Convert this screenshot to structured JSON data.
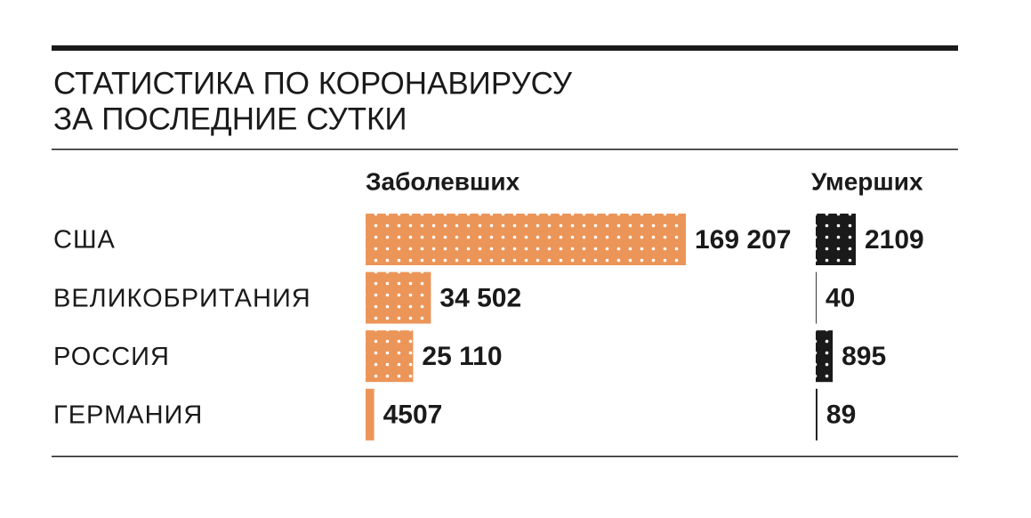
{
  "chart_data": {
    "type": "bar",
    "title": [
      "СТАТИСТИКА ПО КОРОНАВИРУСУ",
      "ЗА ПОСЛЕДНИЕ СУТКИ"
    ],
    "categories": [
      "США",
      "ВЕЛИКОБРИТАНИЯ",
      "РОССИЯ",
      "ГЕРМАНИЯ"
    ],
    "series": [
      {
        "name": "Заболевших",
        "color": "#ec9559",
        "values": [
          169207,
          34502,
          25110,
          4507
        ],
        "value_labels": [
          "169 207",
          "34 502",
          "25 110",
          "4507"
        ]
      },
      {
        "name": "Умерших",
        "color": "#1a1a1a",
        "values": [
          2109,
          40,
          895,
          89
        ],
        "value_labels": [
          "2109",
          "40",
          "895",
          "89"
        ]
      }
    ]
  }
}
